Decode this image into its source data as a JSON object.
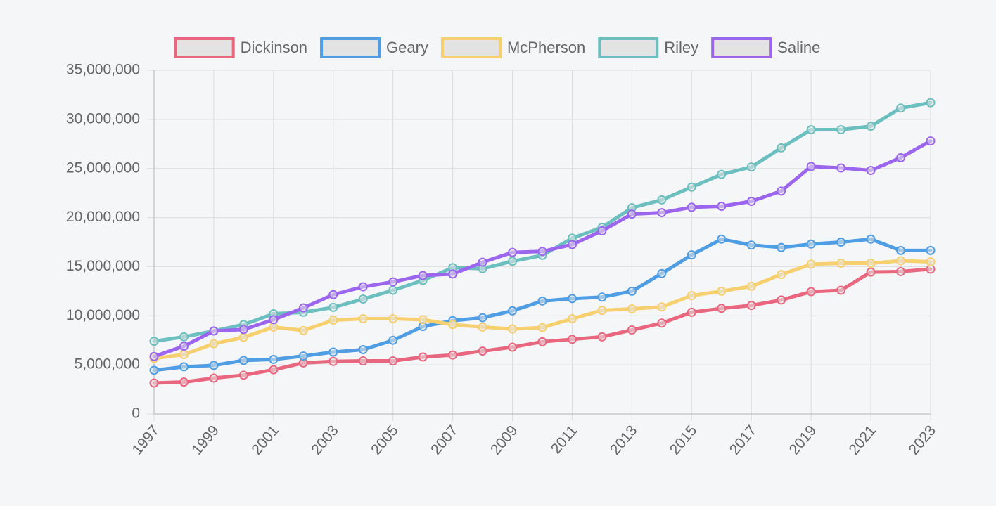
{
  "chart_data": {
    "type": "line",
    "title": "",
    "xlabel": "",
    "ylabel": "",
    "x": [
      "1997",
      "1998",
      "1999",
      "2000",
      "2001",
      "2002",
      "2003",
      "2004",
      "2005",
      "2006",
      "2007",
      "2008",
      "2009",
      "2010",
      "2011",
      "2012",
      "2013",
      "2014",
      "2015",
      "2016",
      "2017",
      "2018",
      "2019",
      "2020",
      "2021",
      "2022",
      "2023"
    ],
    "x_tick_labels": [
      "1997",
      "1999",
      "2001",
      "2003",
      "2005",
      "2007",
      "2009",
      "2011",
      "2013",
      "2015",
      "2017",
      "2019",
      "2021",
      "2023"
    ],
    "ylim": [
      0,
      35000000
    ],
    "y_tick_values": [
      0,
      5000000,
      10000000,
      15000000,
      20000000,
      25000000,
      30000000,
      35000000
    ],
    "y_tick_labels": [
      "0",
      "5,000,000",
      "10,000,000",
      "15,000,000",
      "20,000,000",
      "25,000,000",
      "30,000,000",
      "35,000,000"
    ],
    "grid": true,
    "legend_position": "top",
    "series": [
      {
        "name": "Dickinson",
        "color": "#e8677f",
        "values": [
          3150000,
          3250000,
          3650000,
          3950000,
          4500000,
          5200000,
          5350000,
          5400000,
          5400000,
          5800000,
          6000000,
          6400000,
          6800000,
          7350000,
          7600000,
          7850000,
          8550000,
          9250000,
          10350000,
          10750000,
          11050000,
          11600000,
          12450000,
          12600000,
          14450000,
          14500000,
          14750000
        ]
      },
      {
        "name": "Geary",
        "color": "#4f9ee4",
        "values": [
          4450000,
          4800000,
          4950000,
          5450000,
          5550000,
          5900000,
          6300000,
          6550000,
          7500000,
          8900000,
          9500000,
          9800000,
          10500000,
          11500000,
          11750000,
          11900000,
          12500000,
          14300000,
          16200000,
          17800000,
          17200000,
          16950000,
          17300000,
          17500000,
          17800000,
          16650000,
          16650000
        ]
      },
      {
        "name": "McPherson",
        "color": "#f6d06e",
        "values": [
          5650000,
          6050000,
          7150000,
          7800000,
          8850000,
          8500000,
          9550000,
          9700000,
          9700000,
          9600000,
          9100000,
          8850000,
          8650000,
          8800000,
          9700000,
          10550000,
          10700000,
          10900000,
          12050000,
          12500000,
          13000000,
          14200000,
          15250000,
          15350000,
          15350000,
          15600000,
          15500000
        ]
      },
      {
        "name": "Riley",
        "color": "#6cbfbf",
        "values": [
          7400000,
          7850000,
          8450000,
          9100000,
          10200000,
          10350000,
          10850000,
          11700000,
          12600000,
          13600000,
          14900000,
          14800000,
          15550000,
          16150000,
          17900000,
          19000000,
          21000000,
          21800000,
          23100000,
          24400000,
          25150000,
          27100000,
          28950000,
          28950000,
          29300000,
          31150000,
          31700000
        ]
      },
      {
        "name": "Saline",
        "color": "#9b65ee",
        "values": [
          5850000,
          6900000,
          8450000,
          8600000,
          9600000,
          10800000,
          12150000,
          12950000,
          13450000,
          14100000,
          14250000,
          15450000,
          16450000,
          16550000,
          17250000,
          18650000,
          20350000,
          20500000,
          21050000,
          21150000,
          21650000,
          22700000,
          25200000,
          25050000,
          24800000,
          26100000,
          27800000
        ]
      }
    ]
  }
}
